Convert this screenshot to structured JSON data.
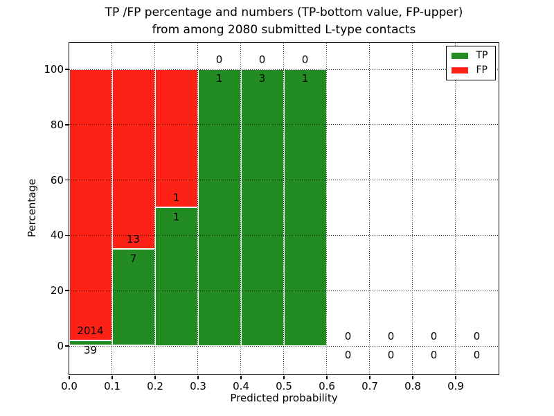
{
  "chart_data": {
    "type": "bar",
    "variant": "stacked-percentage-histogram",
    "title_lines": [
      "TP /FP percentage and numbers (TP-bottom value, FP-upper)",
      "from among 2080 submitted L-type contacts"
    ],
    "xlabel": "Predicted probability",
    "ylabel": "Percentage",
    "xlim": [
      0.0,
      1.0
    ],
    "ylim": [
      -10.3,
      110.3
    ],
    "xtick_labels": [
      "0.0",
      "0.1",
      "0.2",
      "0.3",
      "0.4",
      "0.5",
      "0.6",
      "0.7",
      "0.8",
      "0.9"
    ],
    "ytick_values": [
      0,
      20,
      40,
      60,
      80,
      100
    ],
    "grid": "dotted-black-both-axes",
    "bin_width": 0.1,
    "bin_starts": [
      0.0,
      0.1,
      0.2,
      0.3,
      0.4,
      0.5,
      0.6,
      0.7,
      0.8,
      0.9
    ],
    "series": [
      {
        "name": "TP",
        "color": "#228b22",
        "pct": [
          1.9,
          35,
          50,
          100,
          100,
          100,
          0,
          0,
          0,
          0
        ],
        "counts": [
          39,
          7,
          1,
          1,
          3,
          1,
          0,
          0,
          0,
          0
        ]
      },
      {
        "name": "FP",
        "color": "#fd2116",
        "pct": [
          98.1,
          65,
          50,
          0,
          0,
          0,
          0,
          0,
          0,
          0
        ],
        "counts": [
          2014,
          13,
          1,
          0,
          0,
          0,
          0,
          0,
          0,
          0
        ]
      }
    ],
    "legend": {
      "position": "upper right",
      "entries": [
        {
          "label": "TP",
          "color": "#228b22"
        },
        {
          "label": "FP",
          "color": "#fd2116"
        }
      ]
    },
    "annotation_rule": "FP count shown above TP/FP boundary, TP count shown below boundary"
  }
}
